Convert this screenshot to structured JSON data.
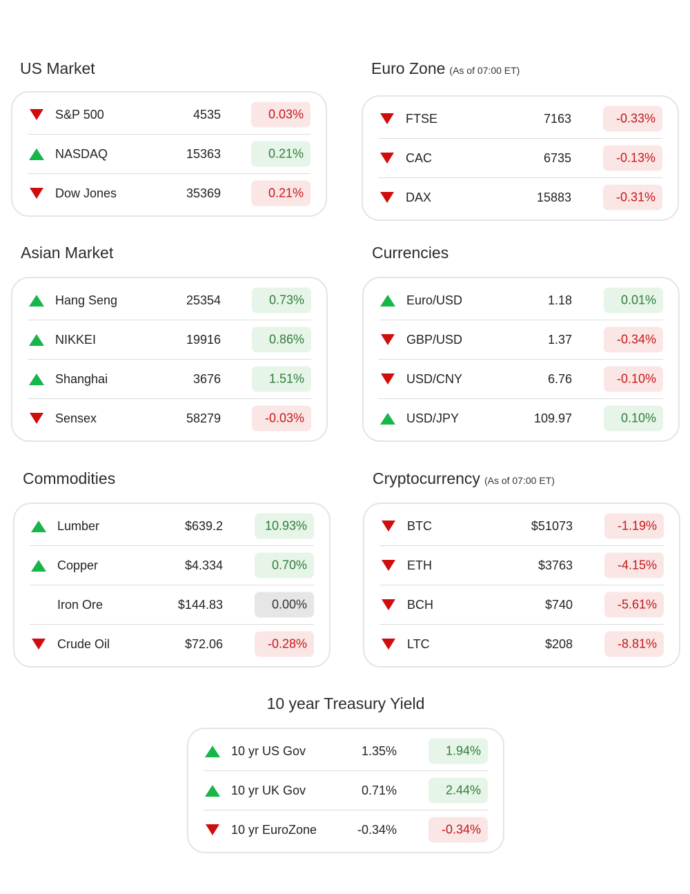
{
  "sections": {
    "us": {
      "title": "US Market",
      "rows": [
        {
          "dir": "down",
          "name": "S&P 500",
          "value": "4535",
          "change": "0.03%",
          "tone": "neg"
        },
        {
          "dir": "up",
          "name": "NASDAQ",
          "value": "15363",
          "change": "0.21%",
          "tone": "pos"
        },
        {
          "dir": "down",
          "name": "Dow Jones",
          "value": "35369",
          "change": "0.21%",
          "tone": "neg"
        }
      ]
    },
    "euro": {
      "title": "Euro Zone",
      "subtitle": "(As of 07:00 ET)",
      "rows": [
        {
          "dir": "down",
          "name": "FTSE",
          "value": "7163",
          "change": "-0.33%",
          "tone": "neg"
        },
        {
          "dir": "down",
          "name": "CAC",
          "value": "6735",
          "change": "-0.13%",
          "tone": "neg"
        },
        {
          "dir": "down",
          "name": "DAX",
          "value": "15883",
          "change": "-0.31%",
          "tone": "neg"
        }
      ]
    },
    "asian": {
      "title": "Asian Market",
      "rows": [
        {
          "dir": "up",
          "name": "Hang Seng",
          "value": "25354",
          "change": "0.73%",
          "tone": "pos"
        },
        {
          "dir": "up",
          "name": "NIKKEI",
          "value": "19916",
          "change": "0.86%",
          "tone": "pos"
        },
        {
          "dir": "up",
          "name": "Shanghai",
          "value": "3676",
          "change": "1.51%",
          "tone": "pos"
        },
        {
          "dir": "down",
          "name": "Sensex",
          "value": "58279",
          "change": "-0.03%",
          "tone": "neg"
        }
      ]
    },
    "currencies": {
      "title": "Currencies",
      "rows": [
        {
          "dir": "up",
          "name": "Euro/USD",
          "value": "1.18",
          "change": "0.01%",
          "tone": "pos"
        },
        {
          "dir": "down",
          "name": "GBP/USD",
          "value": "1.37",
          "change": "-0.34%",
          "tone": "neg"
        },
        {
          "dir": "down",
          "name": "USD/CNY",
          "value": "6.76",
          "change": "-0.10%",
          "tone": "neg"
        },
        {
          "dir": "up",
          "name": "USD/JPY",
          "value": "109.97",
          "change": "0.10%",
          "tone": "pos"
        }
      ]
    },
    "commodities": {
      "title": "Commodities",
      "rows": [
        {
          "dir": "up",
          "name": "Lumber",
          "value": "$639.2",
          "change": "10.93%",
          "tone": "pos"
        },
        {
          "dir": "up",
          "name": "Copper",
          "value": "$4.334",
          "change": "0.70%",
          "tone": "pos"
        },
        {
          "dir": "none",
          "name": "Iron Ore",
          "value": "$144.83",
          "change": "0.00%",
          "tone": "flat"
        },
        {
          "dir": "down",
          "name": "Crude Oil",
          "value": "$72.06",
          "change": "-0.28%",
          "tone": "neg"
        }
      ]
    },
    "crypto": {
      "title": "Cryptocurrency",
      "subtitle": "(As of 07:00 ET)",
      "rows": [
        {
          "dir": "down",
          "name": "BTC",
          "value": "$51073",
          "change": "-1.19%",
          "tone": "neg"
        },
        {
          "dir": "down",
          "name": "ETH",
          "value": "$3763",
          "change": "-4.15%",
          "tone": "neg"
        },
        {
          "dir": "down",
          "name": "BCH",
          "value": "$740",
          "change": "-5.61%",
          "tone": "neg"
        },
        {
          "dir": "down",
          "name": "LTC",
          "value": "$208",
          "change": "-8.81%",
          "tone": "neg"
        }
      ]
    },
    "treasury": {
      "title": "10 year Treasury Yield",
      "rows": [
        {
          "dir": "up",
          "name": "10 yr US Gov",
          "value": "1.35%",
          "change": "1.94%",
          "tone": "pos"
        },
        {
          "dir": "up",
          "name": "10 yr UK Gov",
          "value": "0.71%",
          "change": "2.44%",
          "tone": "pos"
        },
        {
          "dir": "down",
          "name": "10 yr EuroZone",
          "value": "-0.34%",
          "change": "-0.34%",
          "tone": "neg"
        }
      ]
    }
  },
  "colors": {
    "up": "#17b54a",
    "down": "#d00d0d",
    "pos_bg": "#e6f5e8",
    "neg_bg": "#fbe6e6",
    "flat_bg": "#e6e6e6"
  }
}
